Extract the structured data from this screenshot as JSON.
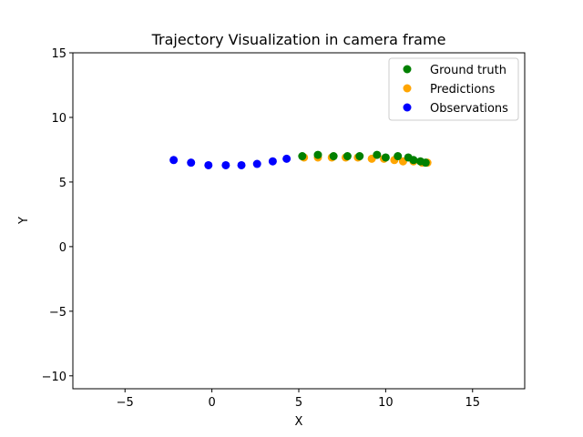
{
  "chart_data": {
    "type": "scatter",
    "title": "Trajectory Visualization in camera frame",
    "xlabel": "X",
    "ylabel": "Y",
    "xlim": [
      -8,
      18
    ],
    "ylim": [
      -11,
      15
    ],
    "xticks": [
      -5,
      0,
      5,
      10,
      15
    ],
    "yticks": [
      -10,
      -5,
      0,
      5,
      10,
      15
    ],
    "xtick_labels": [
      "−5",
      "0",
      "5",
      "10",
      "15"
    ],
    "ytick_labels": [
      "−10",
      "−5",
      "0",
      "5",
      "10",
      "15"
    ],
    "grid": false,
    "legend_position": "top-right",
    "series": [
      {
        "name": "Ground truth",
        "color": "#008000",
        "points": [
          [
            5.2,
            7.0
          ],
          [
            6.1,
            7.1
          ],
          [
            7.0,
            7.0
          ],
          [
            7.8,
            7.0
          ],
          [
            8.5,
            7.0
          ],
          [
            9.5,
            7.1
          ],
          [
            10.0,
            6.9
          ],
          [
            10.7,
            7.0
          ],
          [
            11.3,
            6.9
          ],
          [
            11.6,
            6.7
          ],
          [
            12.0,
            6.6
          ],
          [
            12.3,
            6.5
          ]
        ]
      },
      {
        "name": "Predictions",
        "color": "#ffa500",
        "points": [
          [
            5.3,
            6.9
          ],
          [
            6.1,
            6.9
          ],
          [
            6.9,
            6.9
          ],
          [
            7.7,
            6.9
          ],
          [
            8.4,
            6.9
          ],
          [
            9.2,
            6.8
          ],
          [
            9.9,
            6.8
          ],
          [
            10.5,
            6.7
          ],
          [
            11.0,
            6.6
          ],
          [
            11.6,
            6.6
          ],
          [
            12.1,
            6.5
          ],
          [
            12.4,
            6.5
          ]
        ]
      },
      {
        "name": "Observations",
        "color": "#0000ff",
        "points": [
          [
            -2.2,
            6.7
          ],
          [
            -1.2,
            6.5
          ],
          [
            -0.2,
            6.3
          ],
          [
            0.8,
            6.3
          ],
          [
            1.7,
            6.3
          ],
          [
            2.6,
            6.4
          ],
          [
            3.5,
            6.6
          ],
          [
            4.3,
            6.8
          ]
        ]
      }
    ]
  }
}
